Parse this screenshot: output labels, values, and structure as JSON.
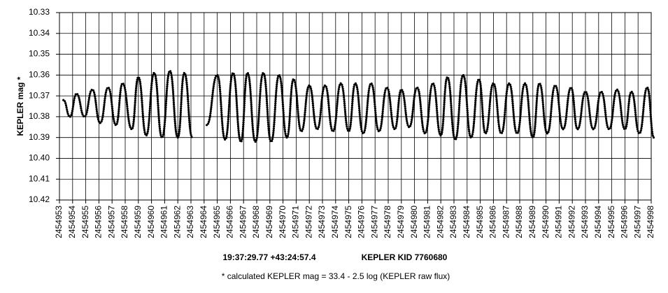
{
  "chart_data": {
    "type": "line",
    "ylabel": "KEPLER mag *",
    "coords": "19:37:29.77 +43:24:57.4",
    "object": "KEPLER KID 7760680",
    "footnote": "* calculated KEPLER mag = 33.4 - 2.5 log (KEPLER raw flux)",
    "xlim": [
      2454953,
      2454998
    ],
    "xticks": [
      2454953,
      2454954,
      2454955,
      2454956,
      2454957,
      2454958,
      2454959,
      2454960,
      2454961,
      2454962,
      2454963,
      2454964,
      2454965,
      2454966,
      2454967,
      2454968,
      2454969,
      2454970,
      2454971,
      2454972,
      2454973,
      2454974,
      2454975,
      2454976,
      2454977,
      2454978,
      2454979,
      2454980,
      2454981,
      2454982,
      2454983,
      2454984,
      2454985,
      2454986,
      2454987,
      2454988,
      2454989,
      2454990,
      2454991,
      2454992,
      2454993,
      2454994,
      2454995,
      2454996,
      2454997,
      2454998
    ],
    "ylim": [
      10.42,
      10.33
    ],
    "yticks": [
      10.33,
      10.34,
      10.35,
      10.36,
      10.37,
      10.38,
      10.39,
      {
        "value": 10.4,
        "label": "10.40"
      },
      10.41,
      10.42
    ],
    "grid": true,
    "color": "#000000",
    "x": [
      2454953.3,
      2454953.8,
      2454954.3,
      2454954.9,
      2454955.5,
      2454956.1,
      2454956.7,
      2454957.3,
      2454957.8,
      2454958.5,
      2454959.0,
      2454959.6,
      2454960.2,
      2454960.8,
      2454961.4,
      2454962.0,
      2454962.5,
      2454963.1,
      2454963.7,
      2454964.2,
      2454965.0,
      2454965.6,
      2454966.2,
      2454966.8,
      2454967.3,
      2454967.9,
      2454968.5,
      2454969.1,
      2454969.7,
      2454970.3,
      2454970.8,
      2454971.4,
      2454972.0,
      2454972.6,
      2454973.2,
      2454973.8,
      2454974.4,
      2454975.0,
      2454975.5,
      2454976.1,
      2454976.7,
      2454977.3,
      2454977.9,
      2454978.5,
      2454979.0,
      2454979.6,
      2454980.2,
      2454980.8,
      2454981.4,
      2454982.0,
      2454982.5,
      2454983.1,
      2454983.7,
      2454984.3,
      2454984.9,
      2454985.4,
      2454986.0,
      2454986.6,
      2454987.2,
      2454987.8,
      2454988.4,
      2454989.0,
      2454989.5,
      2454990.1,
      2454990.7,
      2454991.3,
      2454991.9,
      2454992.4,
      2454993.0,
      2454993.6,
      2454994.2,
      2454994.8,
      2454995.4,
      2454996.0,
      2454996.5,
      2454997.1,
      2454997.7,
      2454998.2
    ],
    "values": [
      10.372,
      10.38,
      10.369,
      10.38,
      10.367,
      10.383,
      10.366,
      10.384,
      10.364,
      10.386,
      10.361,
      10.389,
      10.359,
      10.39,
      10.358,
      10.39,
      10.359,
      10.39,
      null,
      10.384,
      10.36,
      10.391,
      10.359,
      10.392,
      10.359,
      10.392,
      10.359,
      10.392,
      10.36,
      10.39,
      10.362,
      10.387,
      10.365,
      10.386,
      10.365,
      10.387,
      10.364,
      10.387,
      10.364,
      10.388,
      10.364,
      10.387,
      10.366,
      10.386,
      10.367,
      10.385,
      10.366,
      10.388,
      10.364,
      10.389,
      10.361,
      10.391,
      10.36,
      10.39,
      10.362,
      10.388,
      10.364,
      10.388,
      10.364,
      10.388,
      10.364,
      10.39,
      10.364,
      10.388,
      10.365,
      10.386,
      10.366,
      10.386,
      10.368,
      10.386,
      10.368,
      10.386,
      10.367,
      10.386,
      10.368,
      10.388,
      10.366,
      10.39
    ]
  }
}
